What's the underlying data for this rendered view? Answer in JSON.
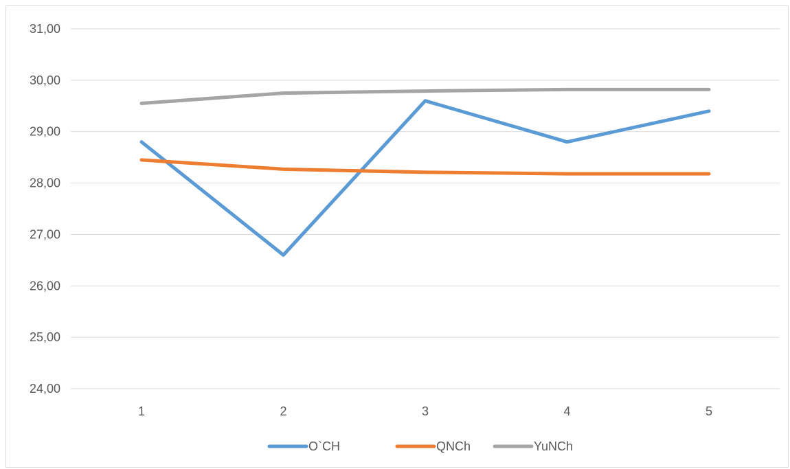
{
  "chart_data": {
    "type": "line",
    "title": "",
    "xlabel": "",
    "ylabel": "",
    "categories": [
      "1",
      "2",
      "3",
      "4",
      "5"
    ],
    "ylim": [
      24,
      31
    ],
    "y_ticks": [
      "24,00",
      "25,00",
      "26,00",
      "27,00",
      "28,00",
      "29,00",
      "30,00",
      "31,00"
    ],
    "grid": true,
    "legend_position": "bottom",
    "series": [
      {
        "name": "O`CH",
        "color": "#5b9bd5",
        "values": [
          28.8,
          26.6,
          29.6,
          28.8,
          29.4
        ]
      },
      {
        "name": "QNCh",
        "color": "#ed7d31",
        "values": [
          28.45,
          28.27,
          28.21,
          28.18,
          28.18
        ]
      },
      {
        "name": "YuNCh",
        "color": "#a5a5a5",
        "values": [
          29.55,
          29.75,
          29.79,
          29.82,
          29.82
        ]
      }
    ]
  }
}
